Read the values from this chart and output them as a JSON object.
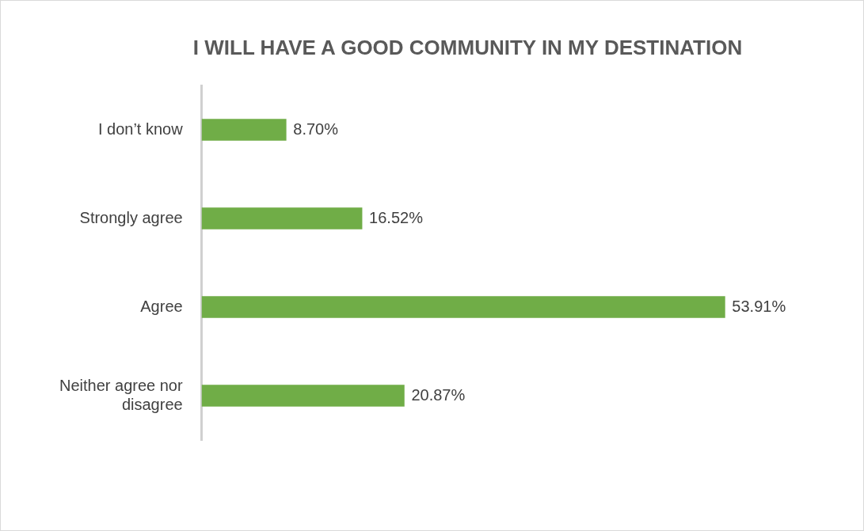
{
  "chart_data": {
    "type": "bar",
    "orientation": "horizontal",
    "title": "I WILL HAVE A GOOD COMMUNITY IN MY DESTINATION",
    "categories": [
      "I don’t know",
      "Strongly agree",
      "Agree",
      "Neither agree nor disagree"
    ],
    "values": [
      8.7,
      16.52,
      53.91,
      20.87
    ],
    "value_labels": [
      "8.70%",
      "16.52%",
      "53.91%",
      "20.87%"
    ],
    "color": "#70ad47",
    "tick_labels": "y",
    "grid": false,
    "legend": false
  }
}
